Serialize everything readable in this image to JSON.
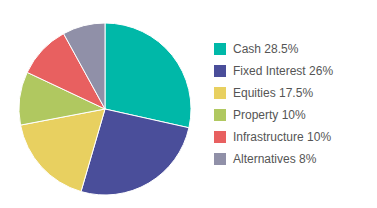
{
  "chart_data": {
    "type": "pie",
    "categories": [
      "Cash 28.5%",
      "Fixed Interest 26%",
      "Equities 17.5%",
      "Property 10%",
      "Infrastructure 10%",
      "Alternatives 8%"
    ],
    "values": [
      28.5,
      26.0,
      17.5,
      10.0,
      10.0,
      8.0
    ],
    "colors": [
      "#00B8A8",
      "#4A4E9A",
      "#E8D060",
      "#B0C860",
      "#E86060",
      "#9090A8"
    ],
    "legend": "right"
  }
}
